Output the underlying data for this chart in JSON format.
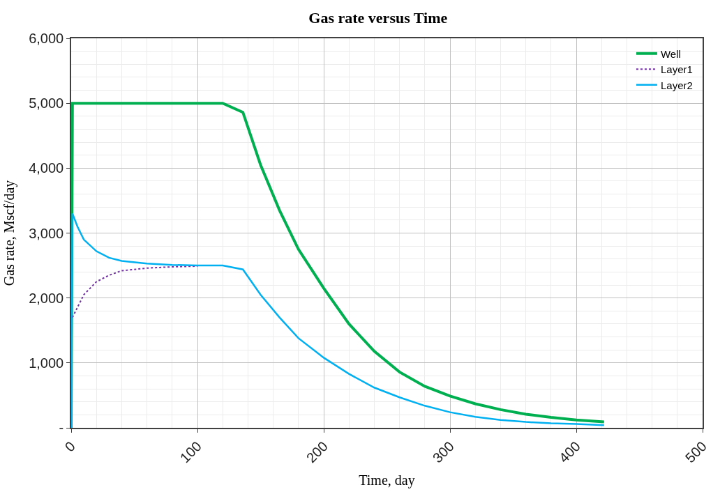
{
  "chart_data": {
    "type": "line",
    "title": "Gas rate versus Time",
    "xlabel": "Time, day",
    "ylabel": "Gas rate, Mscf/day",
    "xlim": [
      0,
      500
    ],
    "xticks": [
      0,
      100,
      200,
      300,
      400,
      500
    ],
    "ylim": [
      0,
      6000
    ],
    "yticks": [
      {
        "value": 0,
        "label": "-"
      },
      {
        "value": 1000,
        "label": "1,000"
      },
      {
        "value": 2000,
        "label": "2,000"
      },
      {
        "value": 3000,
        "label": "3,000"
      },
      {
        "value": 4000,
        "label": "4,000"
      },
      {
        "value": 5000,
        "label": "5,000"
      },
      {
        "value": 6000,
        "label": "6,000"
      }
    ],
    "grid": true,
    "legend": "top right",
    "marker": "none",
    "series": [
      {
        "name": "Well",
        "color": "#00b050",
        "line_style": "solid",
        "x": [
          0,
          1,
          120,
          136,
          150,
          165,
          180,
          200,
          220,
          240,
          260,
          280,
          300,
          320,
          340,
          360,
          380,
          400,
          422
        ],
        "values": [
          0,
          5000,
          5000,
          4860,
          4050,
          3350,
          2750,
          2150,
          1600,
          1180,
          860,
          640,
          490,
          370,
          280,
          210,
          160,
          120,
          90
        ]
      },
      {
        "name": "Layer1",
        "color": "#7030a0",
        "line_style": "dotted",
        "x": [
          1,
          10,
          20,
          30,
          40,
          60,
          80,
          100
        ],
        "values": [
          1700,
          2050,
          2250,
          2350,
          2420,
          2460,
          2480,
          2490
        ]
      },
      {
        "name": "Layer2",
        "color": "#00b0f0",
        "line_style": "solid",
        "x": [
          0,
          1,
          5,
          10,
          20,
          30,
          40,
          60,
          80,
          100,
          120,
          136,
          150,
          165,
          180,
          200,
          220,
          240,
          260,
          280,
          300,
          320,
          340,
          360,
          380,
          400,
          422
        ],
        "values": [
          0,
          3300,
          3100,
          2900,
          2720,
          2620,
          2570,
          2530,
          2510,
          2500,
          2500,
          2440,
          2050,
          1700,
          1380,
          1080,
          830,
          620,
          470,
          340,
          240,
          170,
          120,
          90,
          70,
          60,
          40
        ]
      }
    ]
  }
}
